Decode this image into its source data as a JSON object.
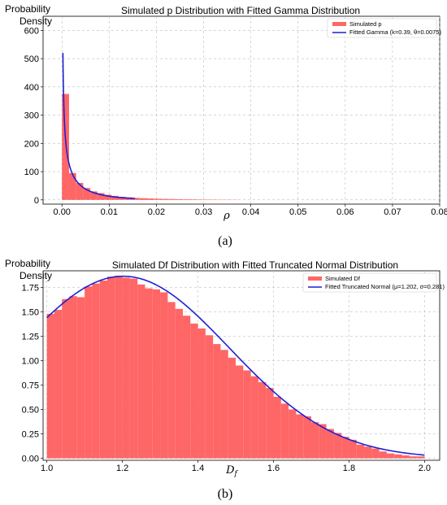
{
  "figure": {
    "panel_a_label": "(a)",
    "panel_b_label": "(b)"
  },
  "chart_data": [
    {
      "type": "bar",
      "title": "Simulated p Distribution with Fitted Gamma Distribution",
      "ylabel_line1": "Probability",
      "ylabel_line2": "Density",
      "xlabel": "ρ",
      "xlim": [
        -0.004,
        0.08
      ],
      "ylim": [
        -15,
        650
      ],
      "xticks": [
        0.0,
        0.01,
        0.02,
        0.03,
        0.04,
        0.05,
        0.06,
        0.07,
        0.08
      ],
      "xtick_labels": [
        "0.00",
        "0.01",
        "0.02",
        "0.03",
        "0.04",
        "0.05",
        "0.06",
        "0.07",
        "0.08"
      ],
      "yticks": [
        0,
        100,
        200,
        300,
        400,
        500,
        600
      ],
      "ytick_labels": [
        "0",
        "100",
        "200",
        "300",
        "400",
        "500",
        "600"
      ],
      "grid": true,
      "legend_position": "top-right",
      "bar_color": "#ff6666",
      "line_color": "#1f1fd6",
      "histogram": {
        "name": "Simulated p",
        "bin_width": 0.0015,
        "bin_start": 0.0,
        "heights": [
          375,
          95,
          60,
          42,
          30,
          24,
          18,
          14,
          11,
          9,
          7,
          6,
          5,
          4,
          3.5,
          3,
          2.5,
          2,
          1.8,
          1.5,
          1.3,
          1.1,
          0.9,
          0.8,
          0.6
        ]
      },
      "fit": {
        "name": "Fitted Gamma (k=0.39, θ=0.0075)",
        "k": 0.39,
        "theta": 0.0075,
        "x_from": 0.0002,
        "x_to": 0.0155
      }
    },
    {
      "type": "bar",
      "title": "Simulated Df Distribution with Fitted Truncated Normal Distribution",
      "ylabel_line1": "Probability",
      "ylabel_line2": "Density",
      "xlabel": "D",
      "xlabel_sub": "f",
      "xlim": [
        0.99,
        2.04
      ],
      "ylim": [
        -0.02,
        1.92
      ],
      "xticks": [
        1.0,
        1.2,
        1.4,
        1.6,
        1.8,
        2.0
      ],
      "xtick_labels": [
        "1.0",
        "1.2",
        "1.4",
        "1.6",
        "1.8",
        "2.0"
      ],
      "yticks": [
        0.0,
        0.25,
        0.5,
        0.75,
        1.0,
        1.25,
        1.5,
        1.75
      ],
      "ytick_labels": [
        "0.00",
        "0.25",
        "0.50",
        "0.75",
        "1.00",
        "1.25",
        "1.50",
        "1.75"
      ],
      "grid": true,
      "legend_position": "top-right",
      "bar_color": "#ff6666",
      "line_color": "#1f1fd6",
      "histogram": {
        "name": "Simulated Df",
        "bin_width": 0.02,
        "bin_start": 1.0,
        "heights": [
          1.48,
          1.52,
          1.63,
          1.66,
          1.65,
          1.76,
          1.79,
          1.82,
          1.86,
          1.87,
          1.85,
          1.84,
          1.78,
          1.74,
          1.73,
          1.7,
          1.6,
          1.53,
          1.46,
          1.38,
          1.33,
          1.26,
          1.17,
          1.11,
          1.03,
          0.95,
          0.9,
          0.84,
          0.78,
          0.72,
          0.63,
          0.56,
          0.5,
          0.45,
          0.43,
          0.37,
          0.35,
          0.3,
          0.26,
          0.22,
          0.19,
          0.14,
          0.12,
          0.1,
          0.07,
          0.05,
          0.04,
          0.03,
          0.02,
          0.02
        ]
      },
      "fit": {
        "name": "Fitted Truncated Normal (μ=1.202, σ=0.281)",
        "mu": 1.202,
        "sigma": 0.281,
        "lower": 1.0,
        "upper": 2.0
      }
    }
  ]
}
